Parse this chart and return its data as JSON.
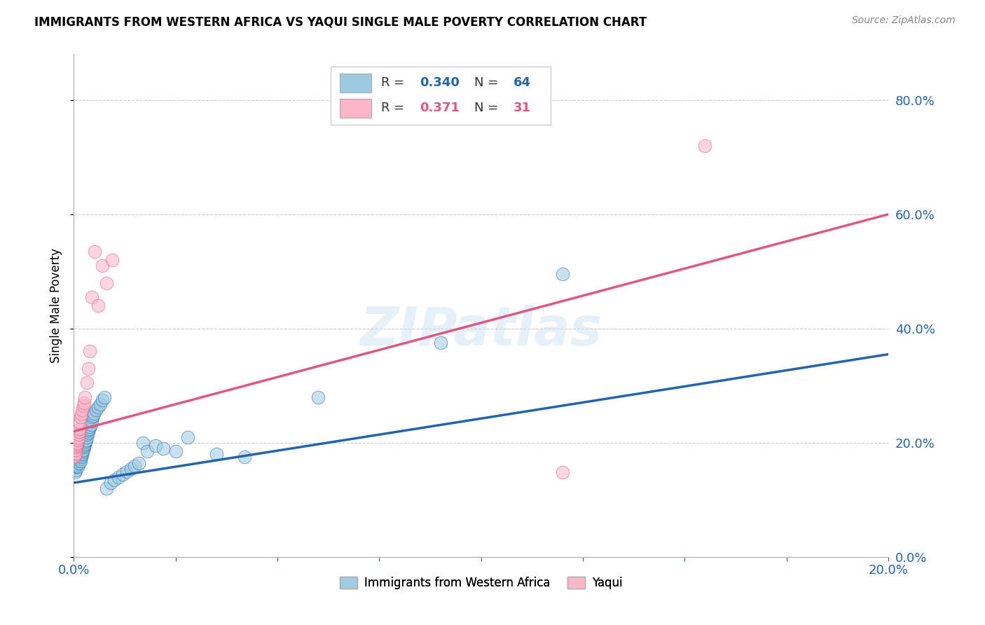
{
  "title": "IMMIGRANTS FROM WESTERN AFRICA VS YAQUI SINGLE MALE POVERTY CORRELATION CHART",
  "source": "Source: ZipAtlas.com",
  "ylabel": "Single Male Poverty",
  "legend1_label": "Immigrants from Western Africa",
  "legend2_label": "Yaqui",
  "R1": 0.34,
  "N1": 64,
  "R2": 0.371,
  "N2": 31,
  "color_blue": "#9ecae1",
  "color_pink": "#fbb4c8",
  "line_blue": "#2166ac",
  "line_pink": "#e05880",
  "watermark": "ZIPatlas",
  "blue_x": [
    0.0002,
    0.0003,
    0.0004,
    0.0005,
    0.0006,
    0.0007,
    0.0008,
    0.0009,
    0.001,
    0.0011,
    0.0012,
    0.0013,
    0.0014,
    0.0015,
    0.0016,
    0.0017,
    0.0018,
    0.0019,
    0.002,
    0.0021,
    0.0022,
    0.0023,
    0.0025,
    0.0026,
    0.0027,
    0.0028,
    0.0029,
    0.003,
    0.0032,
    0.0033,
    0.0035,
    0.0036,
    0.0038,
    0.004,
    0.0042,
    0.0044,
    0.0046,
    0.0048,
    0.005,
    0.0055,
    0.006,
    0.0065,
    0.007,
    0.0075,
    0.008,
    0.009,
    0.01,
    0.011,
    0.012,
    0.013,
    0.014,
    0.015,
    0.016,
    0.017,
    0.018,
    0.02,
    0.022,
    0.025,
    0.028,
    0.035,
    0.042,
    0.06,
    0.09,
    0.12
  ],
  "blue_y": [
    0.155,
    0.148,
    0.152,
    0.158,
    0.16,
    0.163,
    0.165,
    0.162,
    0.158,
    0.17,
    0.168,
    0.172,
    0.165,
    0.175,
    0.172,
    0.168,
    0.178,
    0.175,
    0.182,
    0.18,
    0.185,
    0.188,
    0.192,
    0.195,
    0.2,
    0.198,
    0.202,
    0.205,
    0.21,
    0.215,
    0.218,
    0.222,
    0.225,
    0.228,
    0.232,
    0.238,
    0.245,
    0.248,
    0.252,
    0.258,
    0.262,
    0.268,
    0.275,
    0.28,
    0.12,
    0.13,
    0.135,
    0.14,
    0.145,
    0.15,
    0.155,
    0.16,
    0.165,
    0.2,
    0.185,
    0.195,
    0.19,
    0.185,
    0.21,
    0.18,
    0.175,
    0.28,
    0.375,
    0.495
  ],
  "pink_x": [
    0.0002,
    0.0003,
    0.0004,
    0.0005,
    0.0006,
    0.0007,
    0.0008,
    0.0009,
    0.001,
    0.0011,
    0.0012,
    0.0013,
    0.0014,
    0.0015,
    0.0017,
    0.0019,
    0.0021,
    0.0023,
    0.0025,
    0.0028,
    0.0032,
    0.0036,
    0.004,
    0.0045,
    0.0052,
    0.006,
    0.007,
    0.008,
    0.0095,
    0.12,
    0.155
  ],
  "pink_y": [
    0.175,
    0.178,
    0.182,
    0.188,
    0.192,
    0.195,
    0.198,
    0.2,
    0.205,
    0.208,
    0.215,
    0.22,
    0.225,
    0.235,
    0.245,
    0.25,
    0.258,
    0.265,
    0.27,
    0.28,
    0.305,
    0.33,
    0.36,
    0.455,
    0.535,
    0.44,
    0.51,
    0.48,
    0.52,
    0.148,
    0.72
  ],
  "xlim": [
    0.0,
    0.2
  ],
  "ylim": [
    0.0,
    0.88
  ],
  "yticks": [
    0.0,
    0.2,
    0.4,
    0.6,
    0.8
  ],
  "blue_trend_x0": 0.0,
  "blue_trend_x1": 0.2,
  "blue_trend_y0": 0.13,
  "blue_trend_y1": 0.355,
  "pink_trend_x0": 0.0,
  "pink_trend_x1": 0.2,
  "pink_trend_y0": 0.22,
  "pink_trend_y1": 0.6
}
